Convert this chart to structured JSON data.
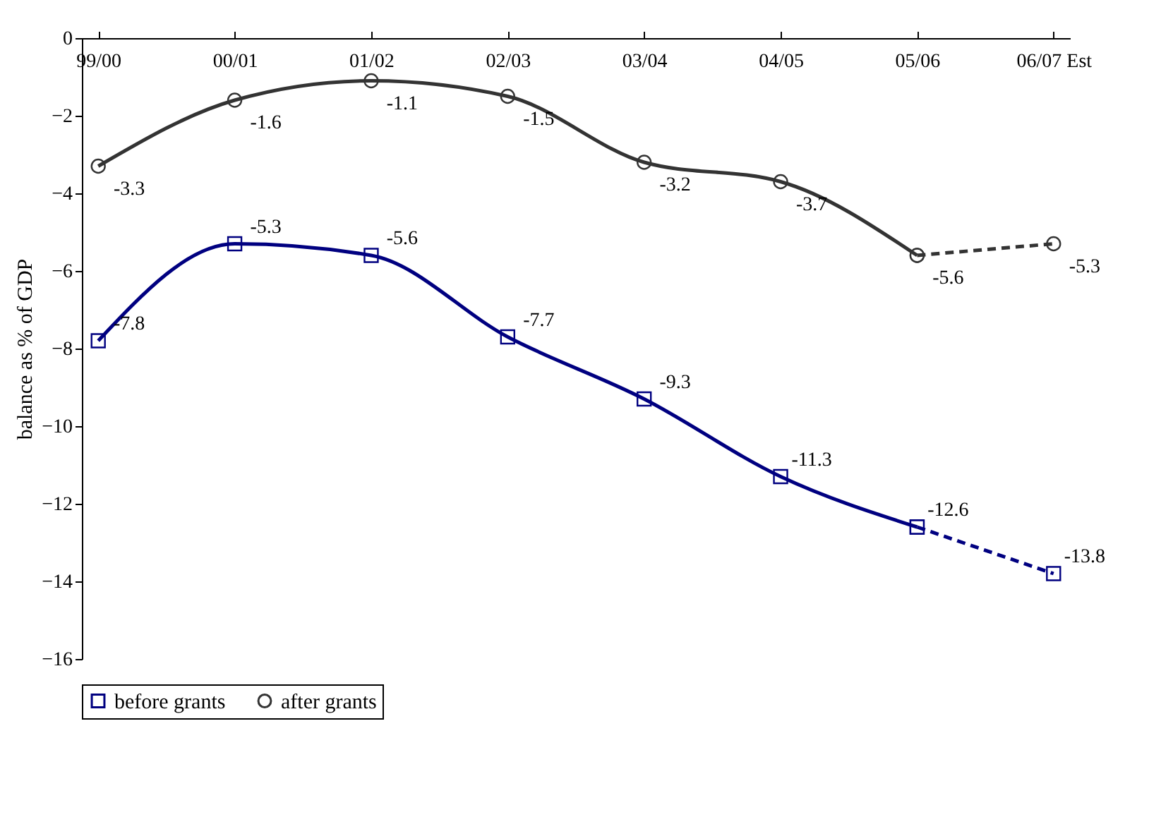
{
  "chart_data": {
    "type": "line",
    "ylabel": "balance as % of GDP",
    "categories": [
      "99/00",
      "00/01",
      "01/02",
      "02/03",
      "03/04",
      "04/05",
      "05/06",
      "06/07 Est"
    ],
    "series": [
      {
        "name": "before grants",
        "color": "#000080",
        "marker": "square",
        "line_style": "solid",
        "values": [
          -7.8,
          -5.3,
          -5.6,
          -7.7,
          -9.3,
          -11.3,
          -12.6,
          null
        ]
      },
      {
        "color": "#000080",
        "marker": "square",
        "line_style": "dashed",
        "values": [
          null,
          null,
          null,
          null,
          null,
          null,
          -12.6,
          -13.8
        ],
        "value_labels": [
          null,
          null,
          null,
          null,
          null,
          null,
          null,
          "-13.8"
        ]
      },
      {
        "name": "after grants",
        "color": "#333333",
        "marker": "circle",
        "line_style": "solid",
        "values": [
          -3.3,
          -1.6,
          -1.1,
          -1.5,
          -3.2,
          -3.7,
          -5.6,
          null
        ]
      },
      {
        "color": "#333333",
        "marker": "circle",
        "line_style": "dashed",
        "values": [
          null,
          null,
          null,
          null,
          null,
          null,
          -5.6,
          -5.3
        ],
        "value_labels": [
          null,
          null,
          null,
          null,
          null,
          null,
          null,
          "-5.3"
        ]
      }
    ],
    "ylim": [
      -16,
      0
    ],
    "yticks": [
      -16,
      -14,
      -12,
      -10,
      -8,
      -6,
      -4,
      -2,
      0
    ],
    "data_labels": true,
    "legend": "bottom",
    "grid": false
  }
}
